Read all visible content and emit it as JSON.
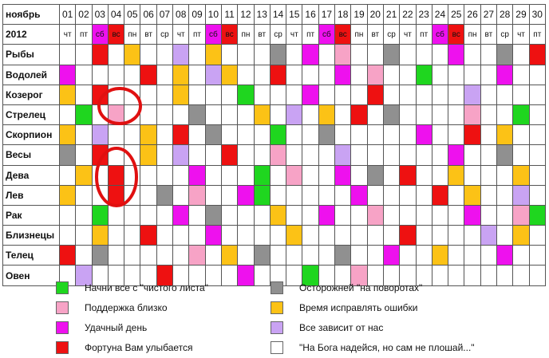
{
  "calendar": {
    "month": "ноябрь",
    "year": "2012",
    "days": [
      "01",
      "02",
      "03",
      "04",
      "05",
      "06",
      "07",
      "08",
      "09",
      "10",
      "11",
      "12",
      "13",
      "14",
      "15",
      "16",
      "17",
      "18",
      "19",
      "20",
      "21",
      "22",
      "23",
      "24",
      "25",
      "26",
      "27",
      "28",
      "29",
      "30"
    ],
    "weekdays": [
      "чт",
      "пт",
      "сб",
      "вс",
      "пн",
      "вт",
      "ср",
      "чт",
      "пт",
      "сб",
      "вс",
      "пн",
      "вт",
      "ср",
      "чт",
      "пт",
      "сб",
      "вс",
      "пн",
      "вт",
      "ср",
      "чт",
      "пт",
      "сб",
      "вс",
      "пн",
      "вт",
      "ср",
      "чт",
      "пт"
    ],
    "weekday_colors": {
      "сб": "#ee11ee",
      "вс": "#ee1111"
    },
    "rows": [
      {
        "sign": "Рыбы",
        "cells": "WWRWOWWLWOWWWDWMWPWWDWWWMWWDWR"
      },
      {
        "sign": "Водолей",
        "cells": "MWWWWRWOWLOWWRWWWMWPWWGWWWWMWW"
      },
      {
        "sign": "Козерог",
        "cells": "OWRWWWWOWWWGWWWMWWWRWWWWWLWWWW"
      },
      {
        "sign": "Стрелец",
        "cells": "WGWPWWWWDWWWOWLWOWRWDWWWWPWWGW"
      },
      {
        "sign": "Скорпион",
        "cells": "OWLWWOWRWDWWWGWWDWWWWWMWWRWOWW"
      },
      {
        "sign": "Весы",
        "cells": "DWRWWOWLWWRWWPWWWLWWWWWWMWWDWW"
      },
      {
        "sign": "Дева",
        "cells": "WOWRWWWWMWWWGWPWWMWDWRWWOWWWOW"
      },
      {
        "sign": "Лев",
        "cells": "OWWRWWDWPWWMGWWWWWMWWWWRWOWWLW"
      },
      {
        "sign": "Рак",
        "cells": "WWGWWWWMWDWWWOWWMWWPWWWWWMWWPG"
      },
      {
        "sign": "Близнецы",
        "cells": "WWOWWRWWWMWWWWOWWWWWWRWWWWLWOW"
      },
      {
        "sign": "Телец",
        "cells": "RWDWWWWWPWOWDWWWWDWWMWWOWWWMWW"
      },
      {
        "sign": "Овен",
        "cells": "WLWWWWRWWWWMWWWGWWPWWWWWWWWWWW"
      }
    ],
    "circled": [
      {
        "sign": "Стрелец",
        "day": "04"
      },
      {
        "sign": "Дева",
        "day": "04"
      },
      {
        "sign": "Лев",
        "day": "04"
      }
    ]
  },
  "colors": {
    "G": "#1fd61f",
    "P": "#f7a3c6",
    "M": "#ee11ee",
    "R": "#ee1111",
    "D": "#909090",
    "O": "#fcc216",
    "L": "#c9a3f3",
    "W": "#ffffff",
    "circle": "#e01010"
  },
  "legend": {
    "items": [
      {
        "code": "G",
        "label": "Начни все с \"чистого листа\""
      },
      {
        "code": "P",
        "label": "Поддержка близко"
      },
      {
        "code": "M",
        "label": "Удачный день"
      },
      {
        "code": "R",
        "label": "Фортуна Вам улыбается"
      },
      {
        "code": "D",
        "label": "Осторожней \"на поворотах\""
      },
      {
        "code": "O",
        "label": "Время исправлять ошибки"
      },
      {
        "code": "L",
        "label": "Все зависит от нас"
      },
      {
        "code": "W",
        "label": "\"На Бога надейся, но сам не плошай...\""
      }
    ]
  }
}
